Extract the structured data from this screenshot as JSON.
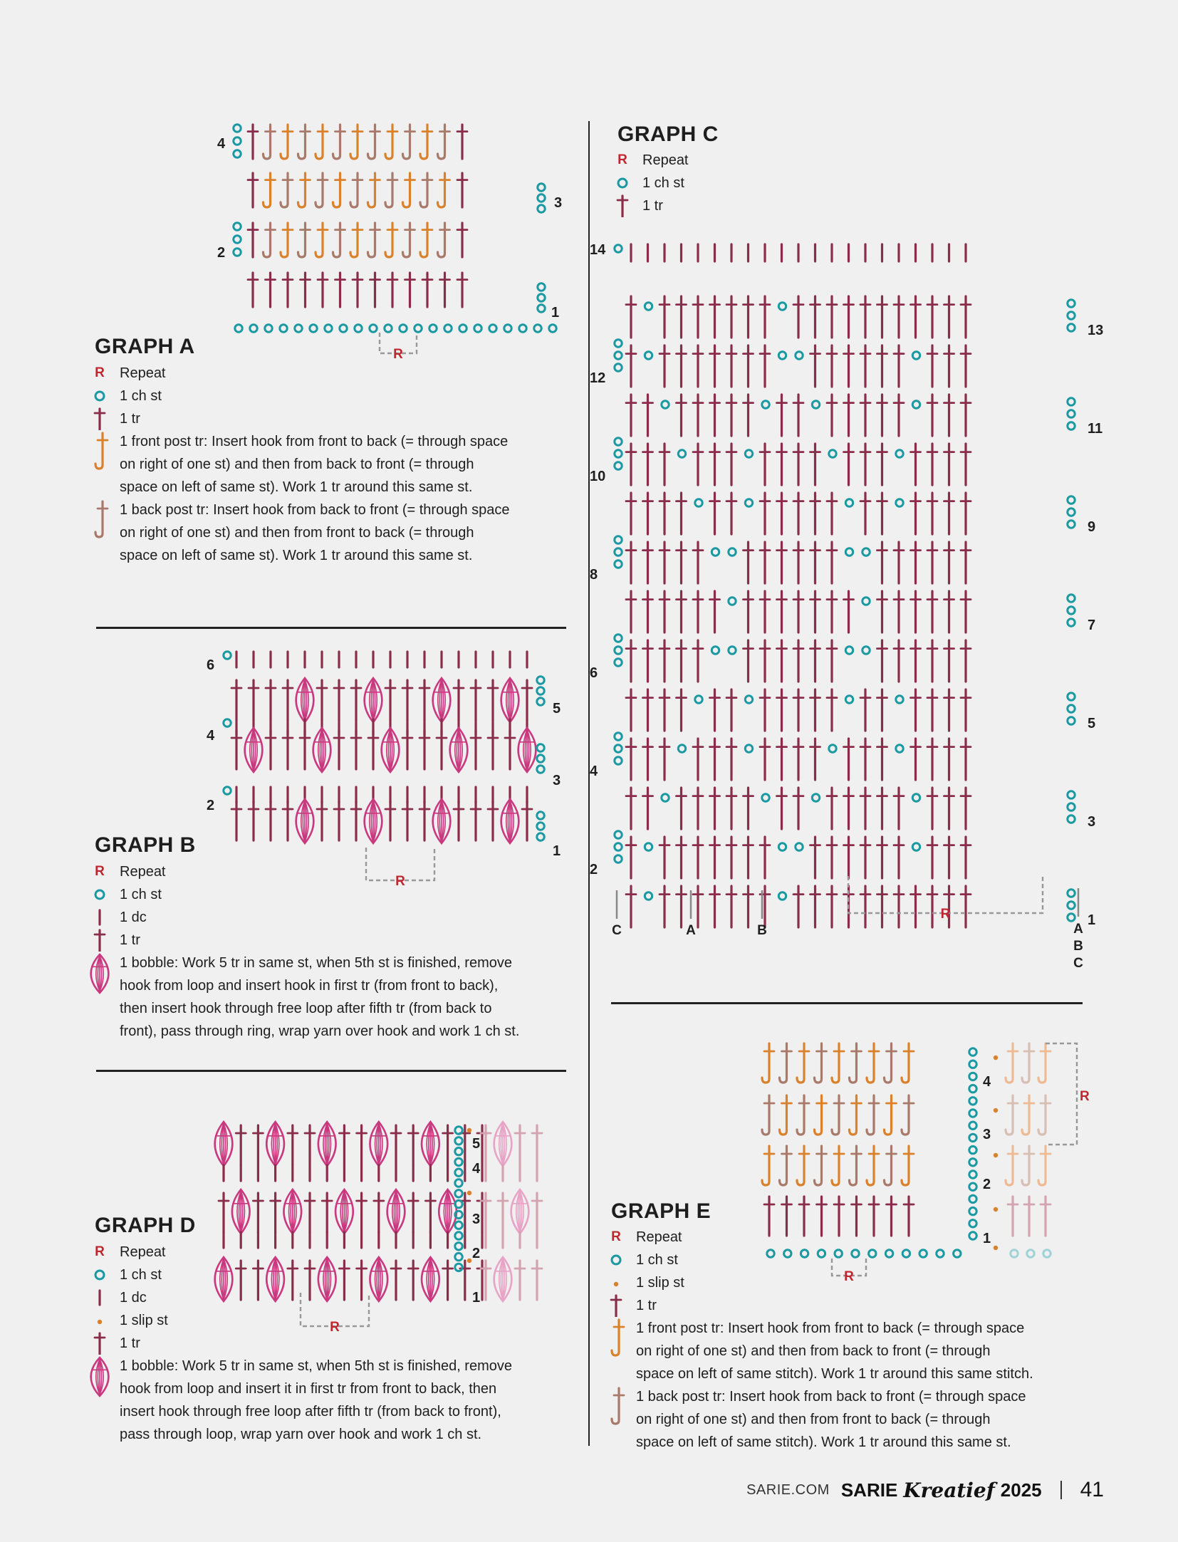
{
  "colors": {
    "tr": "#8a2d4a",
    "ch": "#1a99a3",
    "front_post": "#d9822b",
    "back_post": "#a97a6a",
    "bobble": "#c9397f",
    "repeat": "#c0262d",
    "slip_st": "#d9822b",
    "faded_tr": "#d3a3b2",
    "faded_front_post": "#eeba93",
    "faded_back_post": "#d7bfb4",
    "faded_ch": "#9fd2d6",
    "faded_bobble": "#e8a4c6"
  },
  "graph_a": {
    "title": "GRAPH A",
    "row_labels": [
      "4",
      "3",
      "2",
      "1"
    ],
    "repeat_marker": "R",
    "legend": [
      {
        "icon": "repeat-letter",
        "symbol": "R",
        "text": "Repeat"
      },
      {
        "icon": "chain-circle",
        "text": "1 ch st"
      },
      {
        "icon": "treble-symbol",
        "text": "1 tr"
      },
      {
        "icon": "front-post-treble-symbol",
        "lines": [
          "1 front post tr: Insert hook from front to back (= through space",
          "on right of one st) and then from back to front (= through",
          "space on left of same st). Work 1 tr around this same st."
        ]
      },
      {
        "icon": "back-post-treble-symbol",
        "lines": [
          "1 back post tr: Insert hook from back to front (= through space",
          "on right of one st) and then from front to back (= through",
          "space on left of same st). Work 1 tr around this same st."
        ]
      }
    ]
  },
  "graph_b": {
    "title": "GRAPH B",
    "row_labels": [
      "6",
      "5",
      "4",
      "3",
      "2",
      "1"
    ],
    "repeat_marker": "R",
    "legend": [
      {
        "icon": "repeat-letter",
        "symbol": "R",
        "text": "Repeat"
      },
      {
        "icon": "chain-circle",
        "text": "1 ch st"
      },
      {
        "icon": "double-crochet-symbol",
        "text": "1 dc"
      },
      {
        "icon": "treble-symbol",
        "text": "1 tr"
      },
      {
        "icon": "bobble-symbol",
        "lines": [
          "1 bobble: Work 5 tr in same st, when 5th st is finished, remove",
          "hook from loop and insert hook in first tr (from front to back),",
          "then insert hook through free loop after fifth tr (from back to",
          "front), pass through ring, wrap yarn over hook and work 1 ch st."
        ]
      }
    ]
  },
  "graph_c": {
    "title": "GRAPH C",
    "row_labels": [
      "14",
      "13",
      "12",
      "11",
      "10",
      "9",
      "8",
      "7",
      "6",
      "5",
      "4",
      "3",
      "2",
      "1"
    ],
    "repeat_marker": "R",
    "size_markers": [
      "C",
      "A",
      "B"
    ],
    "size_markers_right": [
      "A",
      "B",
      "C"
    ],
    "legend": [
      {
        "icon": "repeat-letter",
        "symbol": "R",
        "text": "Repeat"
      },
      {
        "icon": "chain-circle",
        "text": "1 ch st"
      },
      {
        "icon": "treble-symbol",
        "text": "1 tr"
      }
    ]
  },
  "graph_d": {
    "title": "GRAPH D",
    "row_labels": [
      "5",
      "4",
      "3",
      "2",
      "1"
    ],
    "repeat_marker": "R",
    "legend": [
      {
        "icon": "repeat-letter",
        "symbol": "R",
        "text": "Repeat"
      },
      {
        "icon": "chain-circle",
        "text": "1 ch st"
      },
      {
        "icon": "double-crochet-symbol",
        "text": "1 dc"
      },
      {
        "icon": "slip-stitch-dot",
        "text": "1 slip st"
      },
      {
        "icon": "treble-symbol",
        "text": "1 tr"
      },
      {
        "icon": "bobble-symbol",
        "lines": [
          "1 bobble: Work 5 tr in same st, when 5th st is finished, remove",
          "hook from loop and insert it in first tr from front to back, then",
          "insert hook through free loop after fifth tr (from back to front),",
          "pass through loop, wrap yarn over hook and work 1 ch st."
        ]
      }
    ]
  },
  "graph_e": {
    "title": "GRAPH E",
    "row_labels": [
      "4",
      "3",
      "2",
      "1"
    ],
    "repeat_marker": "R",
    "legend": [
      {
        "icon": "repeat-letter",
        "symbol": "R",
        "text": "Repeat"
      },
      {
        "icon": "chain-circle",
        "text": "1 ch st"
      },
      {
        "icon": "slip-stitch-dot",
        "text": "1 slip st"
      },
      {
        "icon": "treble-symbol",
        "text": "1 tr"
      },
      {
        "icon": "front-post-treble-symbol",
        "lines": [
          "1 front post tr: Insert hook from front to back (= through space",
          "on right of one st) and then from back to front (= through",
          "space on left of same stitch). Work 1 tr around this same stitch."
        ]
      },
      {
        "icon": "back-post-treble-symbol",
        "lines": [
          "1 back post tr: Insert hook from back to front (= through space",
          "on right of one st) and then from front to back (= through",
          "space on left of same stitch). Work 1 tr around this same st."
        ]
      }
    ]
  },
  "footer": {
    "site": "SARIE.COM",
    "brand": "SARIE",
    "brand_script": "Kreatief",
    "year": "2025",
    "page_number": "41"
  }
}
